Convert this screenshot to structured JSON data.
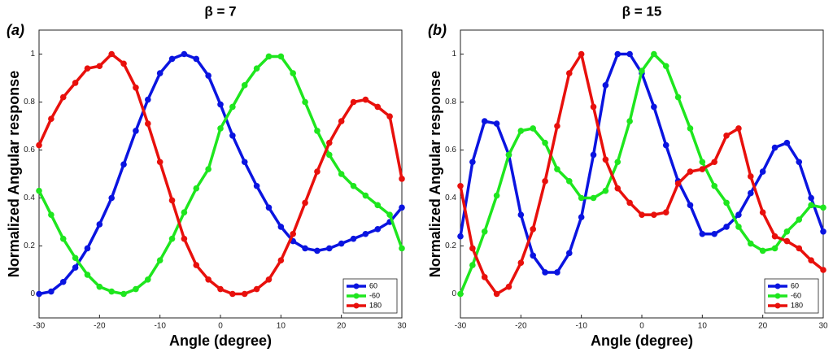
{
  "chart_data": [
    {
      "type": "line",
      "annotation": "(a)",
      "title": "β = 7",
      "xlabel": "Angle (degree)",
      "ylabel": "Normalized Angular response",
      "x": [
        -30,
        -28,
        -26,
        -24,
        -22,
        -20,
        -18,
        -16,
        -14,
        -12,
        -10,
        -8,
        -6,
        -4,
        -2,
        0,
        2,
        4,
        6,
        8,
        10,
        12,
        14,
        16,
        18,
        20,
        22,
        24,
        26,
        28,
        30
      ],
      "series": [
        {
          "name": "60",
          "color": "#0a14e0",
          "values": [
            0.0,
            0.01,
            0.05,
            0.11,
            0.19,
            0.29,
            0.4,
            0.54,
            0.68,
            0.81,
            0.92,
            0.98,
            1.0,
            0.98,
            0.91,
            0.79,
            0.66,
            0.55,
            0.45,
            0.36,
            0.28,
            0.22,
            0.19,
            0.18,
            0.19,
            0.21,
            0.23,
            0.25,
            0.27,
            0.3,
            0.36
          ]
        },
        {
          "name": "-60",
          "color": "#1ee61e",
          "values": [
            0.43,
            0.33,
            0.23,
            0.15,
            0.08,
            0.03,
            0.01,
            0.0,
            0.02,
            0.06,
            0.14,
            0.23,
            0.34,
            0.44,
            0.52,
            0.69,
            0.78,
            0.87,
            0.94,
            0.99,
            0.99,
            0.92,
            0.8,
            0.68,
            0.58,
            0.5,
            0.45,
            0.41,
            0.37,
            0.33,
            0.19
          ]
        },
        {
          "name": "180",
          "color": "#e8100c",
          "values": [
            0.62,
            0.73,
            0.82,
            0.88,
            0.94,
            0.95,
            1.0,
            0.96,
            0.86,
            0.71,
            0.55,
            0.39,
            0.23,
            0.12,
            0.06,
            0.02,
            0.0,
            0.0,
            0.02,
            0.06,
            0.14,
            0.25,
            0.38,
            0.51,
            0.63,
            0.72,
            0.8,
            0.81,
            0.78,
            0.74,
            0.48
          ]
        }
      ],
      "xlim": [
        -30,
        30
      ],
      "ylim": [
        -0.1,
        1.1
      ],
      "xticks": [
        -30,
        -20,
        -10,
        0,
        10,
        20,
        30
      ],
      "yticks": [
        0,
        0.2,
        0.4,
        0.6,
        0.8,
        1
      ],
      "legend": "lower right"
    },
    {
      "type": "line",
      "annotation": "(b)",
      "title": "β = 15",
      "xlabel": "Angle (degree)",
      "ylabel": "Normalized Angular response",
      "x": [
        -30,
        -28,
        -26,
        -24,
        -22,
        -20,
        -18,
        -16,
        -14,
        -12,
        -10,
        -8,
        -6,
        -4,
        -2,
        0,
        2,
        4,
        6,
        8,
        10,
        12,
        14,
        16,
        18,
        20,
        22,
        24,
        26,
        28,
        30
      ],
      "series": [
        {
          "name": "60",
          "color": "#0a14e0",
          "values": [
            0.24,
            0.55,
            0.72,
            0.71,
            0.58,
            0.33,
            0.16,
            0.09,
            0.09,
            0.17,
            0.32,
            0.58,
            0.87,
            1.0,
            1.0,
            0.92,
            0.78,
            0.62,
            0.47,
            0.37,
            0.25,
            0.25,
            0.28,
            0.33,
            0.42,
            0.51,
            0.61,
            0.63,
            0.55,
            0.4,
            0.26
          ]
        },
        {
          "name": "-60",
          "color": "#1ee61e",
          "values": [
            0.0,
            0.12,
            0.26,
            0.41,
            0.58,
            0.68,
            0.69,
            0.63,
            0.52,
            0.47,
            0.4,
            0.4,
            0.43,
            0.55,
            0.72,
            0.93,
            1.0,
            0.95,
            0.82,
            0.69,
            0.55,
            0.45,
            0.38,
            0.28,
            0.21,
            0.18,
            0.19,
            0.26,
            0.31,
            0.37,
            0.36
          ]
        },
        {
          "name": "180",
          "color": "#e8100c",
          "values": [
            0.45,
            0.19,
            0.07,
            0.0,
            0.03,
            0.13,
            0.27,
            0.47,
            0.7,
            0.92,
            1.0,
            0.78,
            0.56,
            0.44,
            0.38,
            0.33,
            0.33,
            0.34,
            0.46,
            0.51,
            0.52,
            0.55,
            0.66,
            0.69,
            0.49,
            0.34,
            0.24,
            0.22,
            0.19,
            0.14,
            0.1
          ]
        }
      ],
      "xlim": [
        -30,
        30
      ],
      "ylim": [
        -0.1,
        1.1
      ],
      "xticks": [
        -30,
        -20,
        -10,
        0,
        10,
        20,
        30
      ],
      "yticks": [
        0,
        0.2,
        0.4,
        0.6,
        0.8,
        1
      ],
      "legend": "lower right"
    }
  ]
}
